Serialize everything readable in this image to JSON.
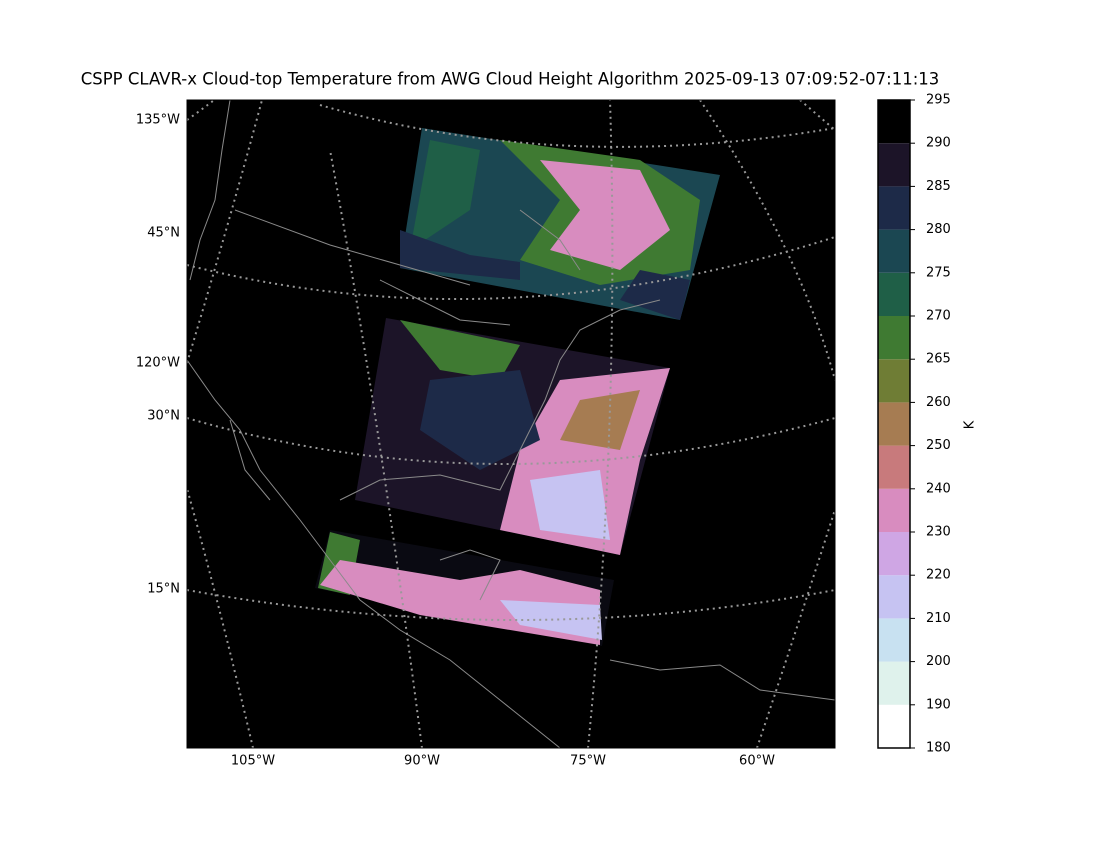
{
  "title": "CSPP CLAVR-x Cloud-top Temperature from AWG Cloud Height Algorithm 2025-09-13 07:09:52-07:11:13",
  "left_labels": [
    "135°W",
    "45°N",
    "120°W",
    "30°N",
    "15°N"
  ],
  "bottom_labels": [
    "105°W",
    "90°W",
    "75°W",
    "60°W"
  ],
  "colorbar": {
    "label": "K",
    "ticks": [
      180,
      190,
      200,
      210,
      220,
      230,
      240,
      250,
      260,
      265,
      270,
      275,
      280,
      285,
      290,
      295
    ],
    "colors": [
      "#ffffff",
      "#dff2ec",
      "#c8e1f1",
      "#c6c3f2",
      "#cfa6e4",
      "#d88cbf",
      "#c87a7c",
      "#a67c52",
      "#6f7d35",
      "#3f7a32",
      "#1f5f47",
      "#1b4752",
      "#1d2a48",
      "#1c1428",
      "#000000"
    ]
  }
}
